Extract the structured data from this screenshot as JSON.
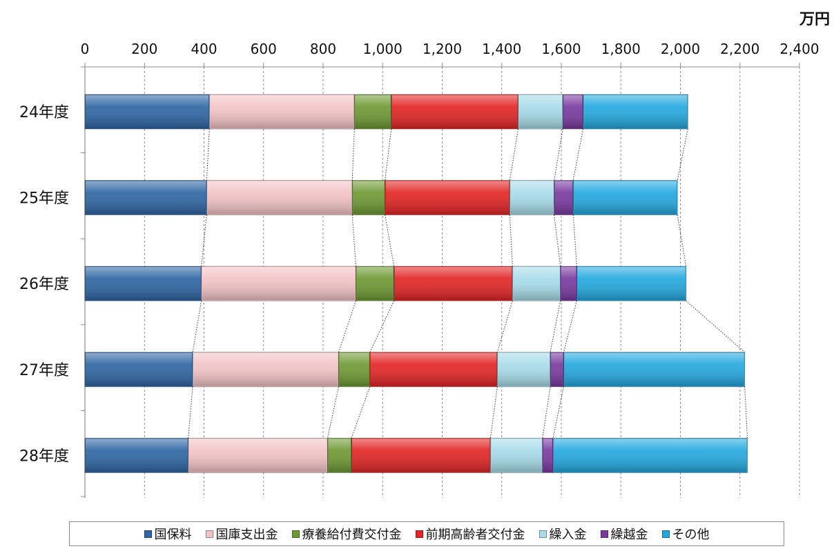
{
  "chart_data": {
    "type": "bar",
    "orientation": "horizontal",
    "stacked": true,
    "unit": "万円",
    "categories": [
      "24年度",
      "25年度",
      "26年度",
      "27年度",
      "28年度"
    ],
    "xlim": [
      0,
      2400
    ],
    "x_ticks": [
      "0",
      "200",
      "400",
      "600",
      "800",
      "1,000",
      "1,200",
      "1,400",
      "1,600",
      "1,800",
      "2,000",
      "2,200",
      "2,400"
    ],
    "grid": "vertical dashed",
    "connector_lines": true,
    "legend_position": "bottom",
    "series": [
      {
        "name": "国保料",
        "color": "#2f66a3",
        "values": [
          418,
          409,
          391,
          362,
          347
        ]
      },
      {
        "name": "国庫支出金",
        "color": "#f3c4c6",
        "values": [
          487,
          489,
          519,
          490,
          468
        ]
      },
      {
        "name": "療養給付費交付金",
        "color": "#6e9a34",
        "values": [
          124,
          110,
          128,
          105,
          80
        ]
      },
      {
        "name": "前期高齢者交付金",
        "color": "#e32525",
        "values": [
          426,
          419,
          398,
          428,
          467
        ]
      },
      {
        "name": "繰入金",
        "color": "#a8dcea",
        "values": [
          150,
          149,
          161,
          178,
          175
        ]
      },
      {
        "name": "繰越金",
        "color": "#7a3aa0",
        "values": [
          68,
          64,
          55,
          45,
          35
        ]
      },
      {
        "name": "その他",
        "color": "#24a9df",
        "values": [
          352,
          350,
          367,
          608,
          653
        ]
      }
    ]
  }
}
